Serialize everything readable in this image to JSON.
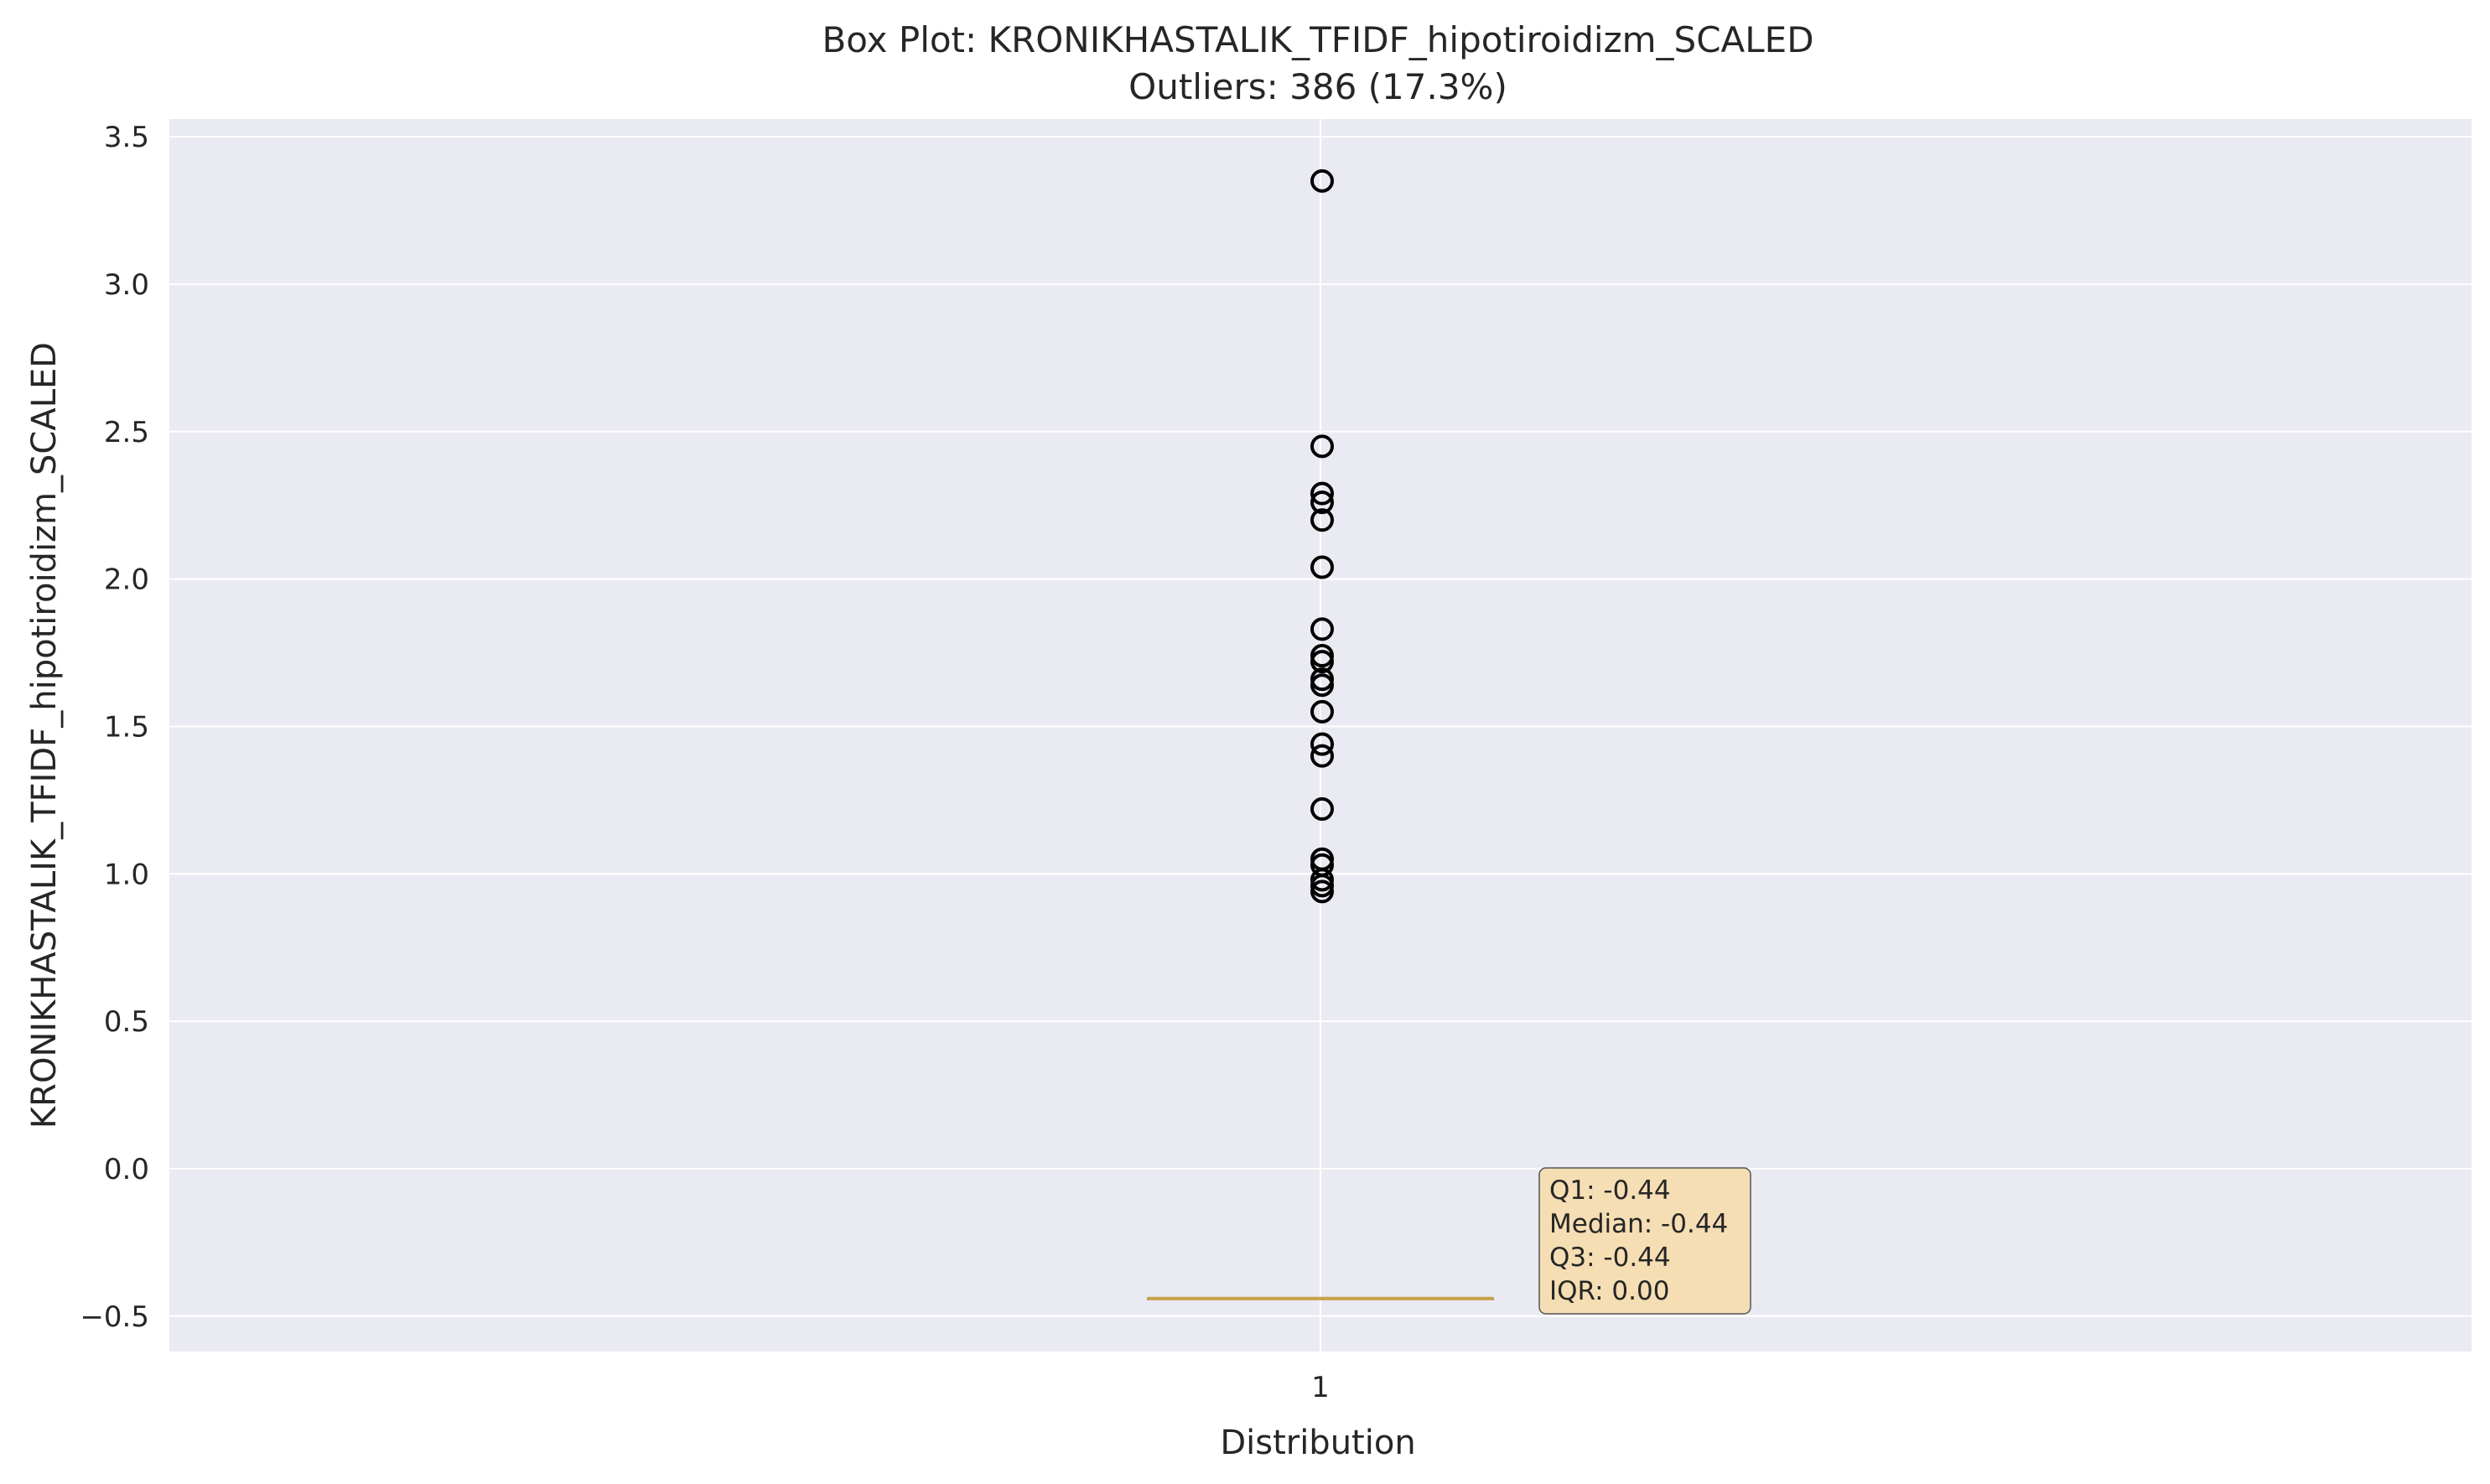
{
  "chart_data": {
    "type": "box",
    "title": "Box Plot: KRONIKHASTALIK_TFIDF_hipotiroidizm_SCALED",
    "subtitle": "Outliers: 386 (17.3%)",
    "xlabel": "Distribution",
    "ylabel": "KRONIKHASTALIK_TFIDF_hipotiroidizm_SCALED",
    "categories": [
      "1"
    ],
    "ylim": [
      -0.62,
      3.56
    ],
    "yticks": [
      -0.5,
      0.0,
      0.5,
      1.0,
      1.5,
      2.0,
      2.5,
      3.0,
      3.5
    ],
    "ytick_labels": [
      "−0.5",
      "0.0",
      "0.5",
      "1.0",
      "1.5",
      "2.0",
      "2.5",
      "3.0",
      "3.5"
    ],
    "grid": true,
    "box": {
      "q1": -0.44,
      "median": -0.44,
      "q3": -0.44,
      "whisker_low": -0.44,
      "whisker_high": -0.44
    },
    "outliers": [
      0.94,
      0.96,
      0.98,
      1.03,
      1.05,
      1.22,
      1.4,
      1.44,
      1.55,
      1.64,
      1.66,
      1.72,
      1.74,
      1.83,
      2.04,
      2.2,
      2.26,
      2.29,
      2.45,
      3.35
    ],
    "stats_box": {
      "lines": [
        "Q1: -0.44",
        "Median: -0.44",
        "Q3: -0.44",
        "IQR: 0.00"
      ]
    },
    "colors": {
      "plot_background": "#eaeaf2",
      "grid": "#ffffff",
      "median_line": "#c9a24a",
      "outlier_edge": "#000000",
      "stats_box_fill": "#f5deb3"
    }
  }
}
